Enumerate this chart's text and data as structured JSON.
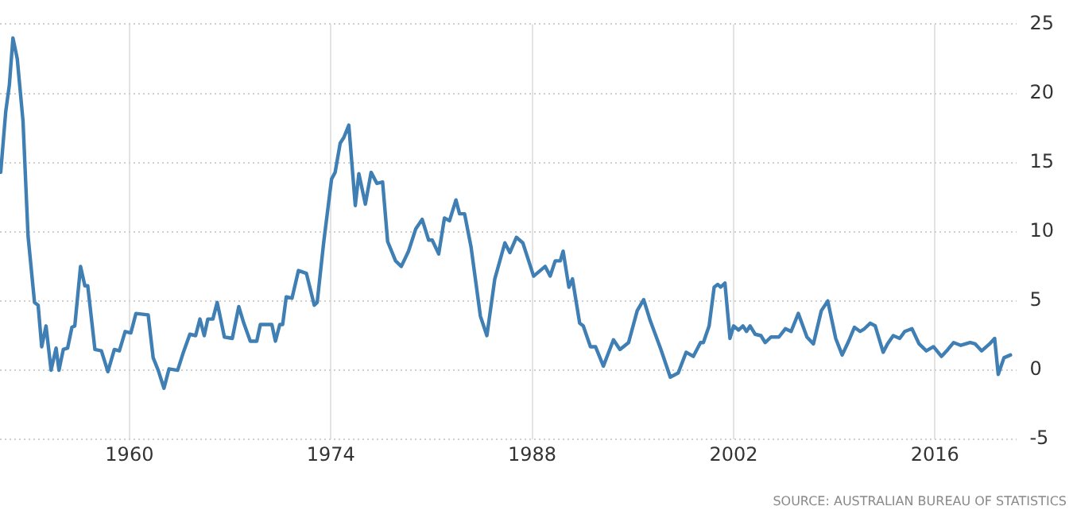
{
  "chart_data": {
    "type": "line",
    "x": [
      1951.05,
      1951.4,
      1951.65,
      1951.9,
      1952.2,
      1952.6,
      1952.95,
      1953.4,
      1953.65,
      1953.9,
      1954.2,
      1954.55,
      1954.9,
      1955.1,
      1955.4,
      1955.7,
      1956.0,
      1956.2,
      1956.6,
      1956.9,
      1957.1,
      1957.6,
      1958.05,
      1958.5,
      1958.95,
      1959.3,
      1959.7,
      1960.1,
      1960.45,
      1961.3,
      1961.65,
      1962.0,
      1962.4,
      1962.75,
      1963.35,
      1963.75,
      1964.2,
      1964.6,
      1964.9,
      1965.2,
      1965.45,
      1965.8,
      1966.1,
      1966.6,
      1967.15,
      1967.6,
      1967.95,
      1968.4,
      1968.85,
      1969.1,
      1969.9,
      1970.15,
      1970.45,
      1970.65,
      1970.9,
      1971.3,
      1971.75,
      1972.3,
      1972.85,
      1973.05,
      1973.5,
      1974.05,
      1974.3,
      1974.65,
      1974.9,
      1975.25,
      1975.7,
      1975.95,
      1976.4,
      1976.8,
      1977.2,
      1977.6,
      1977.95,
      1978.5,
      1978.9,
      1979.4,
      1979.9,
      1980.35,
      1980.8,
      1981.05,
      1981.5,
      1981.9,
      1982.25,
      1982.7,
      1982.95,
      1983.3,
      1983.75,
      1984.4,
      1984.85,
      1985.4,
      1986.1,
      1986.45,
      1986.9,
      1987.35,
      1988.1,
      1988.9,
      1989.25,
      1989.6,
      1989.95,
      1990.15,
      1990.55,
      1990.8,
      1991.3,
      1991.55,
      1992.05,
      1992.4,
      1992.95,
      1993.65,
      1994.1,
      1994.7,
      1995.3,
      1995.75,
      1996.2,
      1996.95,
      1997.6,
      1998.15,
      1998.7,
      1999.2,
      1999.7,
      1999.9,
      2000.3,
      2000.65,
      2000.9,
      2001.1,
      2001.4,
      2001.75,
      2002.0,
      2002.35,
      2002.65,
      2002.9,
      2003.15,
      2003.5,
      2003.9,
      2004.2,
      2004.6,
      2005.15,
      2005.6,
      2006.0,
      2006.5,
      2007.1,
      2007.55,
      2008.1,
      2008.55,
      2009.1,
      2009.55,
      2010.0,
      2010.4,
      2010.8,
      2011.1,
      2011.5,
      2011.85,
      2012.4,
      2012.7,
      2013.1,
      2013.55,
      2013.9,
      2014.4,
      2014.9,
      2015.4,
      2015.9,
      2016.45,
      2016.9,
      2017.3,
      2017.8,
      2018.45,
      2018.8,
      2019.25,
      2019.8,
      2020.15,
      2020.4,
      2020.8,
      2021.25
    ],
    "series": [
      {
        "color": "#3f7fb4",
        "values": [
          14.3,
          18.7,
          20.6,
          24.0,
          22.5,
          18.0,
          9.7,
          4.9,
          4.7,
          1.7,
          3.2,
          0,
          1.6,
          0,
          1.5,
          1.6,
          3.1,
          3.2,
          7.5,
          6.1,
          6.1,
          1.5,
          1.4,
          -0.1,
          1.5,
          1.4,
          2.8,
          2.7,
          4.1,
          4.0,
          0.9,
          0,
          -1.3,
          0.1,
          0,
          1.3,
          2.6,
          2.5,
          3.7,
          2.5,
          3.7,
          3.7,
          4.9,
          2.4,
          2.3,
          4.6,
          3.4,
          2.1,
          2.1,
          3.3,
          3.3,
          2.1,
          3.3,
          3.3,
          5.3,
          5.2,
          7.2,
          7.0,
          4.7,
          4.9,
          9.2,
          13.8,
          14.3,
          16.4,
          16.8,
          17.7,
          11.9,
          14.2,
          12.0,
          14.3,
          13.5,
          13.6,
          9.3,
          7.9,
          7.5,
          8.6,
          10.2,
          10.9,
          9.4,
          9.4,
          8.4,
          11.0,
          10.8,
          12.3,
          11.3,
          11.3,
          8.9,
          3.9,
          2.5,
          6.6,
          9.2,
          8.5,
          9.6,
          9.2,
          6.8,
          7.5,
          6.8,
          7.9,
          7.9,
          8.6,
          6.0,
          6.6,
          3.4,
          3.2,
          1.7,
          1.7,
          0.3,
          2.2,
          1.5,
          2.0,
          4.3,
          5.1,
          3.6,
          1.5,
          -0.5,
          -0.2,
          1.3,
          1.0,
          2.0,
          2.0,
          3.2,
          6.0,
          6.2,
          6.0,
          6.3,
          2.3,
          3.2,
          2.9,
          3.2,
          2.8,
          3.2,
          2.6,
          2.5,
          2.0,
          2.4,
          2.4,
          3.0,
          2.8,
          4.1,
          2.4,
          1.9,
          4.3,
          5.0,
          2.3,
          1.1,
          2.1,
          3.1,
          2.8,
          3.0,
          3.4,
          3.2,
          1.3,
          1.9,
          2.5,
          2.3,
          2.8,
          3.0,
          1.9,
          1.4,
          1.7,
          1.0,
          1.5,
          2.0,
          1.8,
          2.0,
          1.9,
          1.4,
          1.9,
          2.3,
          -0.3,
          0.9,
          1.1
        ]
      }
    ],
    "xlim": [
      1951,
      2021.7
    ],
    "xticks": [
      1960,
      1974,
      1988,
      2002,
      2016
    ],
    "ylim": [
      -5,
      25
    ],
    "yticks": [
      -5,
      0,
      5,
      10,
      15,
      20,
      25
    ],
    "grid": true,
    "legend": false,
    "marker": "none",
    "line_style": "solid",
    "annotations": [
      "SOURCE: AUSTRALIAN BUREAU OF STATISTICS"
    ]
  }
}
